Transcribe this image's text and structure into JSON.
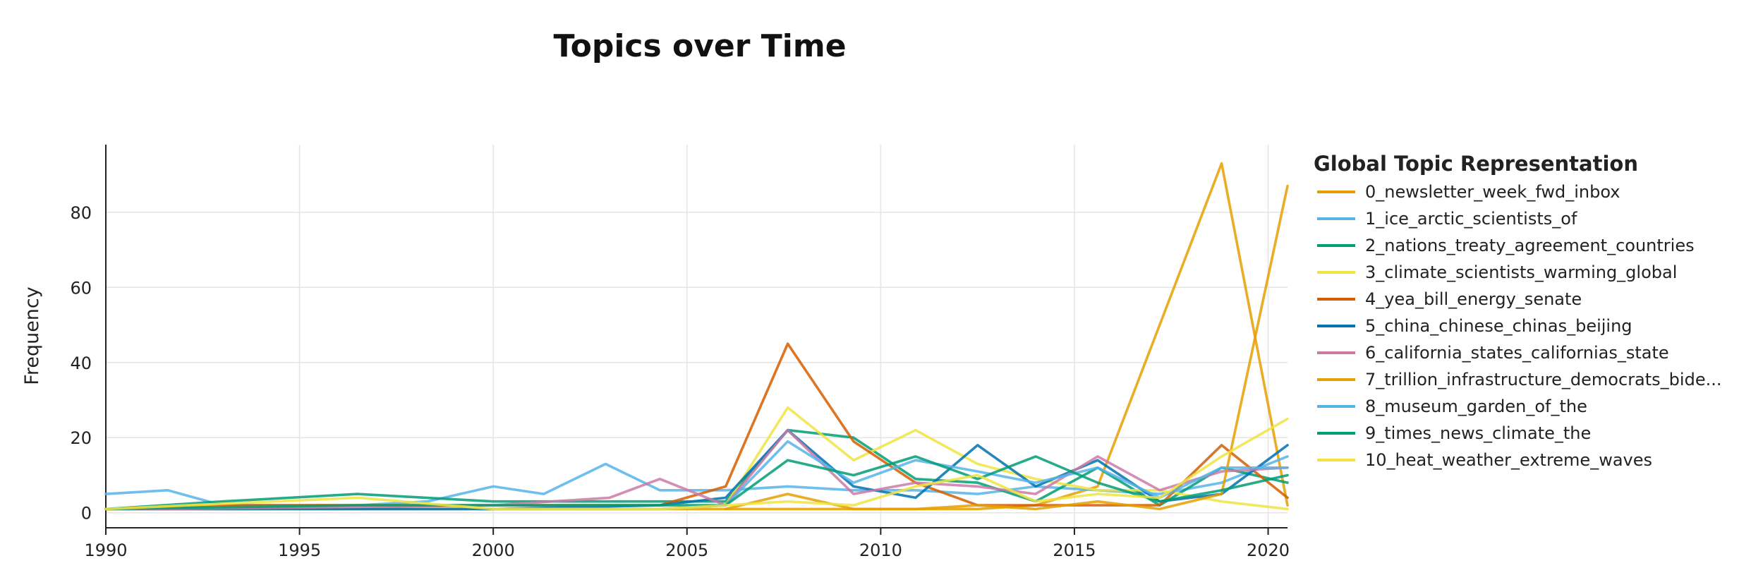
{
  "chart_data": {
    "type": "line",
    "title": "Topics over Time",
    "xlabel": "",
    "ylabel": "Frequency",
    "xlim": [
      1990,
      2020.5
    ],
    "ylim": [
      -4,
      98
    ],
    "x_ticks": [
      1990,
      1995,
      2000,
      2005,
      2010,
      2015,
      2020
    ],
    "y_ticks": [
      0,
      20,
      40,
      60,
      80
    ],
    "grid": true,
    "legend": {
      "title": "Global Topic Representation",
      "placement": "right"
    },
    "series": [
      {
        "name": "0_newsletter_week_fwd_inbox",
        "color": "#E69F00",
        "x": [
          1990,
          2003,
          2006,
          2007.6,
          2009,
          2010.9,
          2012.5,
          2014,
          2015.6,
          2017.2,
          2018.8,
          2020.5
        ],
        "y": [
          1,
          1,
          1,
          1,
          1,
          1,
          1,
          2,
          7,
          50,
          93,
          2
        ]
      },
      {
        "name": "1_ice_arctic_scientists_of",
        "color": "#56B4E9",
        "x": [
          1990,
          1991.6,
          1993,
          1994.6,
          1996.5,
          1998.3,
          2000,
          2001.3,
          2002.9,
          2004.3,
          2006,
          2007.6,
          2009.3,
          2010.9,
          2012.5,
          2014,
          2015.6,
          2017.2,
          2018.8,
          2020.5
        ],
        "y": [
          5,
          6,
          2,
          2,
          2,
          3,
          7,
          5,
          13,
          6,
          6,
          7,
          6,
          6,
          5,
          7,
          6,
          5,
          8,
          15
        ]
      },
      {
        "name": "2_nations_treaty_agreement_countries",
        "color": "#009E73",
        "x": [
          1990,
          1993,
          1996.5,
          2000,
          2003,
          2006,
          2007.6,
          2009.3,
          2010.9,
          2012.5,
          2014,
          2015.6,
          2017.2,
          2018.8,
          2020.5
        ],
        "y": [
          1,
          3,
          5,
          3,
          3,
          3,
          22,
          20,
          9,
          8,
          3,
          12,
          2,
          12,
          8
        ]
      },
      {
        "name": "3_climate_scientists_warming_global",
        "color": "#F0E442",
        "x": [
          1990,
          1996.5,
          2000,
          2004.3,
          2006,
          2007.6,
          2009.3,
          2010.9,
          2012.5,
          2014,
          2015.6,
          2017.2,
          2018.8,
          2020.5
        ],
        "y": [
          1,
          2,
          1,
          1,
          2,
          28,
          14,
          22,
          13,
          9,
          6,
          6,
          3,
          1
        ]
      },
      {
        "name": "4_yea_bill_energy_senate",
        "color": "#D55E00",
        "x": [
          1990,
          1993,
          1996.5,
          2000,
          2003,
          2004.3,
          2006,
          2007.6,
          2009.3,
          2010.9,
          2012.5,
          2014,
          2015.6,
          2017.2,
          2018.8,
          2020.5
        ],
        "y": [
          1,
          2,
          2,
          2,
          2,
          2,
          7,
          45,
          19,
          8,
          2,
          2,
          2,
          2,
          18,
          4
        ]
      },
      {
        "name": "5_china_chinese_chinas_beijing",
        "color": "#0072B2",
        "x": [
          1990,
          1996.5,
          2000,
          2004.3,
          2006,
          2007.6,
          2009.3,
          2010.9,
          2012.5,
          2014,
          2015.6,
          2017.2,
          2018.8,
          2020.5
        ],
        "y": [
          1,
          1,
          1,
          2,
          4,
          22,
          7,
          4,
          18,
          7,
          14,
          3,
          5,
          18
        ]
      },
      {
        "name": "6_california_states_californias_state",
        "color": "#CC79A7",
        "x": [
          1990,
          1991.6,
          2000,
          2003,
          2004.3,
          2006,
          2007.6,
          2009.3,
          2010.9,
          2012.5,
          2014,
          2015.6,
          2017.2,
          2018.8,
          2020.5
        ],
        "y": [
          1,
          1,
          2,
          4,
          9,
          2,
          22,
          5,
          8,
          7,
          5,
          15,
          6,
          11,
          12
        ]
      },
      {
        "name": "7_trillion_infrastructure_democrats_bide...",
        "color": "#E69F00",
        "x": [
          2006,
          2007.6,
          2009.3,
          2010.9,
          2012.5,
          2014,
          2015.6,
          2017.2,
          2018.8,
          2020.5
        ],
        "y": [
          1,
          5,
          1,
          1,
          2,
          1,
          3,
          1,
          5,
          87
        ]
      },
      {
        "name": "8_museum_garden_of_the",
        "color": "#56B4E9",
        "x": [
          2000,
          2004.3,
          2006,
          2007.6,
          2009.3,
          2010.9,
          2012.5,
          2014,
          2015.6,
          2017.2,
          2018.8,
          2020.5
        ],
        "y": [
          1,
          1,
          2,
          19,
          8,
          14,
          11,
          8,
          12,
          4,
          12,
          12
        ]
      },
      {
        "name": "9_times_news_climate_the",
        "color": "#009E73",
        "x": [
          1990,
          1996.5,
          2000,
          2004.3,
          2006,
          2007.6,
          2009.3,
          2010.9,
          2012.5,
          2014,
          2015.6,
          2017.2,
          2018.8,
          2020.5
        ],
        "y": [
          1,
          2,
          2,
          2,
          2,
          14,
          10,
          15,
          9,
          15,
          8,
          3,
          6,
          10
        ]
      },
      {
        "name": "10_heat_weather_extreme_waves",
        "color": "#F0E442",
        "x": [
          1990,
          1996.5,
          2000,
          2004.3,
          2006,
          2007.6,
          2009.3,
          2010.9,
          2012.5,
          2014,
          2015.6,
          2017.2,
          2018.8,
          2020.5
        ],
        "y": [
          1,
          4,
          1,
          1,
          2,
          3,
          2,
          7,
          10,
          3,
          5,
          4,
          15,
          25
        ]
      }
    ]
  }
}
